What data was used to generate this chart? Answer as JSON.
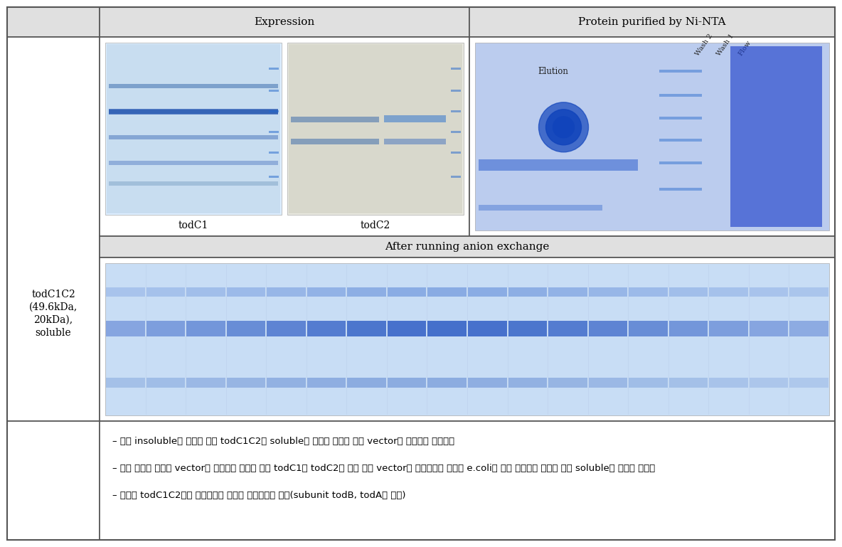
{
  "title_row": [
    "Expression",
    "Protein purified by Ni-NTA"
  ],
  "left_label_lines": [
    "todC1C2",
    "(49.6kDa,",
    "20kDa),",
    "soluble"
  ],
  "sub_labels": [
    "todC1",
    "todC2"
  ],
  "section_header2": "After running anion exchange",
  "text_lines": [
    "– 앞서 insoluble의 결과를 얻은 todC1C2를 soluble의 형태로 만들기 위해 vector를 변경하여 재발현함",
    "– 또한 이전에 하나의 vector에 재조합한 것과는 달리 todC1과 todC2를 각각 다른 vector에 재조합하여 하나의 e.coli에 형질 전환시켜 발현한 결과 soluble의 형태로 나타남",
    "– 그러나 todC1C2로는 타짃물질의 분해가 불가능함을 확인(subunit todB, todA도 필요)"
  ],
  "bg_color": "#ffffff",
  "header_bg": "#e0e0e0",
  "border_color": "#555555",
  "text_color": "#000000",
  "header_fontsize": 11,
  "label_fontsize": 10,
  "body_fontsize": 9.5
}
